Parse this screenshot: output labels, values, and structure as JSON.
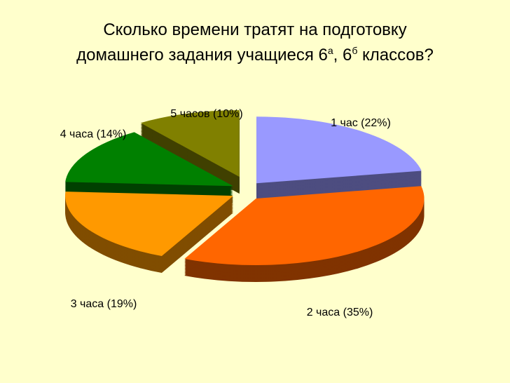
{
  "chart_data": {
    "type": "pie3d",
    "title": [
      "Сколько времени тратят на подготовку",
      "домашнего задания учащиеся 6",
      "а",
      ", 6",
      "б",
      " классов?"
    ],
    "values": [
      22,
      35,
      19,
      14,
      10
    ],
    "value_labels": [
      "1 час (22%)",
      "2 часа (35%)",
      "3 часа (19%)",
      "4 часа (14%)",
      "5 часов (10%)"
    ],
    "colors": [
      "#9999ff",
      "#ff6600",
      "#ff9900",
      "#008000",
      "#808000"
    ],
    "side_colors": [
      "#4d4d80",
      "#803300",
      "#804d00",
      "#004000",
      "#404000"
    ]
  }
}
